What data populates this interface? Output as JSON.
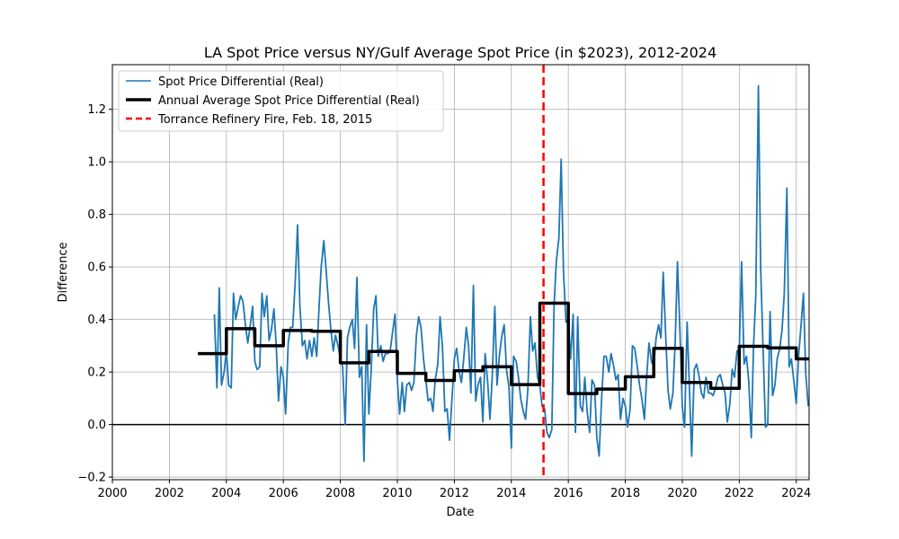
{
  "chart_data": {
    "type": "line",
    "title": "LA Spot Price versus NY/Gulf Average Spot Price (in $2023), 2012-2024",
    "xlabel": "Date",
    "ylabel": "Difference",
    "xlim": [
      2000,
      2024.45
    ],
    "ylim": [
      -0.21,
      1.37
    ],
    "x_ticks": [
      2000,
      2002,
      2004,
      2006,
      2008,
      2010,
      2012,
      2014,
      2016,
      2018,
      2020,
      2022,
      2024
    ],
    "y_ticks": [
      -0.2,
      0.0,
      0.2,
      0.4,
      0.6,
      0.8,
      1.0,
      1.2
    ],
    "grid": true,
    "legend_position": "top-left",
    "zero_line": 0.0,
    "colors": {
      "monthly": "#1f77b4",
      "annual": "#000000",
      "event": "#ff0000",
      "grid": "#b0b0b0"
    },
    "series": [
      {
        "name": "Spot Price Differential (Real)",
        "style": "line-thin",
        "points": [
          [
            2003.58,
            0.42
          ],
          [
            2003.67,
            0.14
          ],
          [
            2003.75,
            0.52
          ],
          [
            2003.83,
            0.15
          ],
          [
            2003.92,
            0.2
          ],
          [
            2004.0,
            0.28
          ],
          [
            2004.08,
            0.15
          ],
          [
            2004.17,
            0.14
          ],
          [
            2004.25,
            0.5
          ],
          [
            2004.33,
            0.4
          ],
          [
            2004.42,
            0.45
          ],
          [
            2004.5,
            0.49
          ],
          [
            2004.58,
            0.47
          ],
          [
            2004.67,
            0.38
          ],
          [
            2004.75,
            0.31
          ],
          [
            2004.83,
            0.37
          ],
          [
            2004.92,
            0.45
          ],
          [
            2005.0,
            0.24
          ],
          [
            2005.08,
            0.21
          ],
          [
            2005.17,
            0.22
          ],
          [
            2005.25,
            0.5
          ],
          [
            2005.33,
            0.41
          ],
          [
            2005.42,
            0.49
          ],
          [
            2005.5,
            0.32
          ],
          [
            2005.58,
            0.36
          ],
          [
            2005.67,
            0.44
          ],
          [
            2005.75,
            0.3
          ],
          [
            2005.83,
            0.09
          ],
          [
            2005.92,
            0.22
          ],
          [
            2006.0,
            0.18
          ],
          [
            2006.08,
            0.04
          ],
          [
            2006.17,
            0.31
          ],
          [
            2006.25,
            0.37
          ],
          [
            2006.33,
            0.37
          ],
          [
            2006.42,
            0.55
          ],
          [
            2006.5,
            0.76
          ],
          [
            2006.58,
            0.45
          ],
          [
            2006.67,
            0.3
          ],
          [
            2006.75,
            0.32
          ],
          [
            2006.83,
            0.25
          ],
          [
            2006.92,
            0.32
          ],
          [
            2007.0,
            0.26
          ],
          [
            2007.08,
            0.33
          ],
          [
            2007.17,
            0.26
          ],
          [
            2007.25,
            0.44
          ],
          [
            2007.33,
            0.6
          ],
          [
            2007.42,
            0.7
          ],
          [
            2007.5,
            0.59
          ],
          [
            2007.58,
            0.47
          ],
          [
            2007.67,
            0.36
          ],
          [
            2007.75,
            0.28
          ],
          [
            2007.83,
            0.34
          ],
          [
            2007.92,
            0.3
          ],
          [
            2008.0,
            0.25
          ],
          [
            2008.08,
            0.22
          ],
          [
            2008.17,
            0.0
          ],
          [
            2008.25,
            0.33
          ],
          [
            2008.33,
            0.37
          ],
          [
            2008.42,
            0.4
          ],
          [
            2008.5,
            0.29
          ],
          [
            2008.58,
            0.56
          ],
          [
            2008.67,
            0.18
          ],
          [
            2008.75,
            0.22
          ],
          [
            2008.83,
            -0.14
          ],
          [
            2008.92,
            0.38
          ],
          [
            2009.0,
            0.04
          ],
          [
            2009.08,
            0.2
          ],
          [
            2009.17,
            0.44
          ],
          [
            2009.25,
            0.49
          ],
          [
            2009.33,
            0.26
          ],
          [
            2009.42,
            0.3
          ],
          [
            2009.5,
            0.24
          ],
          [
            2009.58,
            0.27
          ],
          [
            2009.67,
            0.27
          ],
          [
            2009.75,
            0.28
          ],
          [
            2009.83,
            0.35
          ],
          [
            2009.92,
            0.42
          ],
          [
            2010.0,
            0.17
          ],
          [
            2010.08,
            0.04
          ],
          [
            2010.17,
            0.16
          ],
          [
            2010.25,
            0.05
          ],
          [
            2010.33,
            0.15
          ],
          [
            2010.42,
            0.16
          ],
          [
            2010.5,
            0.13
          ],
          [
            2010.58,
            0.16
          ],
          [
            2010.67,
            0.34
          ],
          [
            2010.75,
            0.41
          ],
          [
            2010.83,
            0.37
          ],
          [
            2010.92,
            0.25
          ],
          [
            2011.0,
            0.17
          ],
          [
            2011.08,
            0.09
          ],
          [
            2011.17,
            0.1
          ],
          [
            2011.25,
            0.05
          ],
          [
            2011.33,
            0.17
          ],
          [
            2011.42,
            0.23
          ],
          [
            2011.5,
            0.41
          ],
          [
            2011.58,
            0.3
          ],
          [
            2011.67,
            0.05
          ],
          [
            2011.75,
            0.06
          ],
          [
            2011.83,
            -0.06
          ],
          [
            2011.92,
            0.1
          ],
          [
            2012.0,
            0.25
          ],
          [
            2012.08,
            0.29
          ],
          [
            2012.17,
            0.2
          ],
          [
            2012.25,
            0.16
          ],
          [
            2012.33,
            0.25
          ],
          [
            2012.42,
            0.37
          ],
          [
            2012.5,
            0.3
          ],
          [
            2012.58,
            0.12
          ],
          [
            2012.67,
            0.53
          ],
          [
            2012.75,
            0.09
          ],
          [
            2012.83,
            0.15
          ],
          [
            2012.92,
            0.18
          ],
          [
            2013.0,
            0.01
          ],
          [
            2013.08,
            0.27
          ],
          [
            2013.17,
            0.16
          ],
          [
            2013.25,
            0.02
          ],
          [
            2013.33,
            0.18
          ],
          [
            2013.42,
            0.45
          ],
          [
            2013.5,
            0.15
          ],
          [
            2013.58,
            0.26
          ],
          [
            2013.67,
            0.34
          ],
          [
            2013.75,
            0.38
          ],
          [
            2013.83,
            0.21
          ],
          [
            2013.92,
            0.14
          ],
          [
            2014.0,
            -0.09
          ],
          [
            2014.08,
            0.26
          ],
          [
            2014.17,
            0.24
          ],
          [
            2014.25,
            0.18
          ],
          [
            2014.33,
            0.1
          ],
          [
            2014.42,
            0.05
          ],
          [
            2014.5,
            0.02
          ],
          [
            2014.58,
            0.13
          ],
          [
            2014.67,
            0.41
          ],
          [
            2014.75,
            0.28
          ],
          [
            2014.83,
            0.31
          ],
          [
            2014.92,
            0.18
          ],
          [
            2015.0,
            0.15
          ],
          [
            2015.08,
            0.07
          ],
          [
            2015.17,
            0.06
          ],
          [
            2015.25,
            -0.03
          ],
          [
            2015.33,
            -0.05
          ],
          [
            2015.42,
            -0.02
          ],
          [
            2015.5,
            0.45
          ],
          [
            2015.58,
            0.62
          ],
          [
            2015.67,
            0.71
          ],
          [
            2015.75,
            1.01
          ],
          [
            2015.83,
            0.58
          ],
          [
            2015.92,
            0.39
          ],
          [
            2016.0,
            0.4
          ],
          [
            2016.08,
            0.25
          ],
          [
            2016.17,
            0.42
          ],
          [
            2016.25,
            -0.03
          ],
          [
            2016.33,
            0.41
          ],
          [
            2016.42,
            0.07
          ],
          [
            2016.5,
            0.05
          ],
          [
            2016.58,
            0.18
          ],
          [
            2016.67,
            0.04
          ],
          [
            2016.75,
            -0.03
          ],
          [
            2016.83,
            0.17
          ],
          [
            2016.92,
            0.15
          ],
          [
            2017.0,
            -0.05
          ],
          [
            2017.08,
            -0.12
          ],
          [
            2017.17,
            0.1
          ],
          [
            2017.25,
            0.26
          ],
          [
            2017.33,
            0.26
          ],
          [
            2017.42,
            0.2
          ],
          [
            2017.5,
            0.27
          ],
          [
            2017.58,
            0.23
          ],
          [
            2017.67,
            0.17
          ],
          [
            2017.75,
            0.19
          ],
          [
            2017.83,
            0.02
          ],
          [
            2017.92,
            0.1
          ],
          [
            2018.0,
            0.07
          ],
          [
            2018.08,
            -0.01
          ],
          [
            2018.17,
            0.06
          ],
          [
            2018.25,
            0.3
          ],
          [
            2018.33,
            0.29
          ],
          [
            2018.42,
            0.22
          ],
          [
            2018.5,
            0.15
          ],
          [
            2018.58,
            0.1
          ],
          [
            2018.67,
            0.02
          ],
          [
            2018.75,
            0.18
          ],
          [
            2018.83,
            0.31
          ],
          [
            2018.92,
            0.24
          ],
          [
            2019.0,
            0.22
          ],
          [
            2019.08,
            0.33
          ],
          [
            2019.17,
            0.38
          ],
          [
            2019.25,
            0.33
          ],
          [
            2019.33,
            0.58
          ],
          [
            2019.42,
            0.33
          ],
          [
            2019.5,
            0.13
          ],
          [
            2019.58,
            0.06
          ],
          [
            2019.67,
            0.12
          ],
          [
            2019.75,
            0.31
          ],
          [
            2019.83,
            0.62
          ],
          [
            2019.92,
            0.35
          ],
          [
            2020.0,
            0.07
          ],
          [
            2020.08,
            -0.01
          ],
          [
            2020.17,
            0.39
          ],
          [
            2020.25,
            0.14
          ],
          [
            2020.33,
            -0.12
          ],
          [
            2020.42,
            0.21
          ],
          [
            2020.5,
            0.23
          ],
          [
            2020.58,
            0.19
          ],
          [
            2020.67,
            0.12
          ],
          [
            2020.75,
            0.1
          ],
          [
            2020.83,
            0.18
          ],
          [
            2020.92,
            0.12
          ],
          [
            2021.0,
            0.12
          ],
          [
            2021.08,
            0.11
          ],
          [
            2021.17,
            0.14
          ],
          [
            2021.25,
            0.18
          ],
          [
            2021.33,
            0.19
          ],
          [
            2021.42,
            0.15
          ],
          [
            2021.5,
            0.12
          ],
          [
            2021.58,
            0.01
          ],
          [
            2021.67,
            0.08
          ],
          [
            2021.75,
            0.21
          ],
          [
            2021.83,
            0.18
          ],
          [
            2021.92,
            0.28
          ],
          [
            2022.0,
            0.28
          ],
          [
            2022.08,
            0.62
          ],
          [
            2022.17,
            0.23
          ],
          [
            2022.25,
            0.26
          ],
          [
            2022.33,
            0.17
          ],
          [
            2022.42,
            -0.05
          ],
          [
            2022.5,
            0.3
          ],
          [
            2022.58,
            0.49
          ],
          [
            2022.67,
            1.29
          ],
          [
            2022.75,
            0.6
          ],
          [
            2022.83,
            0.3
          ],
          [
            2022.92,
            -0.01
          ],
          [
            2023.0,
            0.0
          ],
          [
            2023.08,
            0.43
          ],
          [
            2023.17,
            0.11
          ],
          [
            2023.25,
            0.15
          ],
          [
            2023.33,
            0.25
          ],
          [
            2023.42,
            0.29
          ],
          [
            2023.5,
            0.36
          ],
          [
            2023.58,
            0.5
          ],
          [
            2023.67,
            0.9
          ],
          [
            2023.75,
            0.22
          ],
          [
            2023.83,
            0.25
          ],
          [
            2023.92,
            0.16
          ],
          [
            2024.0,
            0.08
          ],
          [
            2024.08,
            0.26
          ],
          [
            2024.17,
            0.38
          ],
          [
            2024.25,
            0.5
          ],
          [
            2024.33,
            0.2
          ],
          [
            2024.42,
            0.07
          ]
        ]
      },
      {
        "name": "Annual Average Spot Price Differential (Real)",
        "style": "step-thick",
        "annual": [
          [
            2003,
            0.27
          ],
          [
            2004,
            0.365
          ],
          [
            2005,
            0.3
          ],
          [
            2006,
            0.358
          ],
          [
            2007,
            0.355
          ],
          [
            2008,
            0.235
          ],
          [
            2009,
            0.278
          ],
          [
            2010,
            0.195
          ],
          [
            2011,
            0.168
          ],
          [
            2012,
            0.205
          ],
          [
            2013,
            0.22
          ],
          [
            2014,
            0.152
          ],
          [
            2015,
            0.462
          ],
          [
            2016,
            0.118
          ],
          [
            2017,
            0.135
          ],
          [
            2018,
            0.182
          ],
          [
            2019,
            0.29
          ],
          [
            2020,
            0.16
          ],
          [
            2021,
            0.138
          ],
          [
            2022,
            0.298
          ],
          [
            2023,
            0.292
          ],
          [
            2024,
            0.25
          ]
        ]
      },
      {
        "name": "Torrance Refinery Fire, Feb. 18, 2015",
        "style": "vline-dashed",
        "x": 2015.13
      }
    ]
  }
}
